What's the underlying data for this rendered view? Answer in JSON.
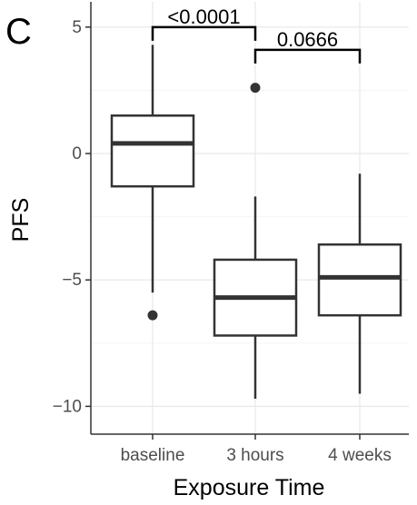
{
  "panel_label": "C",
  "chart_data": {
    "type": "box",
    "title": "",
    "xlabel": "Exposure Time",
    "ylabel": "PFS",
    "categories": [
      "baseline",
      "3 hours",
      "4 weeks"
    ],
    "ylim": [
      -11.1,
      6.0
    ],
    "yticks": [
      5,
      0,
      -5,
      -10
    ],
    "ytick_labels": [
      "5",
      "0",
      "−5",
      "−10"
    ],
    "grid": true,
    "boxes": [
      {
        "category": "baseline",
        "whisker_low": -5.5,
        "q1": -1.3,
        "median": 0.4,
        "q3": 1.5,
        "whisker_high": 4.3,
        "outliers": [
          -6.4
        ]
      },
      {
        "category": "3 hours",
        "whisker_low": -9.7,
        "q1": -7.2,
        "median": -5.7,
        "q3": -4.2,
        "whisker_high": -1.7,
        "outliers": [
          2.6
        ]
      },
      {
        "category": "4 weeks",
        "whisker_low": -9.5,
        "q1": -6.4,
        "median": -4.9,
        "q3": -3.6,
        "whisker_high": -0.8,
        "outliers": []
      }
    ],
    "comparisons": [
      {
        "from": "baseline",
        "to": "3 hours",
        "label": "<0.0001",
        "y": 5.0
      },
      {
        "from": "3 hours",
        "to": "4 weeks",
        "label": "0.0666",
        "y": 4.1
      }
    ],
    "colors": {
      "box_fill": "#ffffff",
      "line": "#333333",
      "grid_major": "#ebebeb",
      "grid_minor": "#f5f5f5",
      "axis": "#333333",
      "tick_text": "#4d4d4d"
    }
  }
}
